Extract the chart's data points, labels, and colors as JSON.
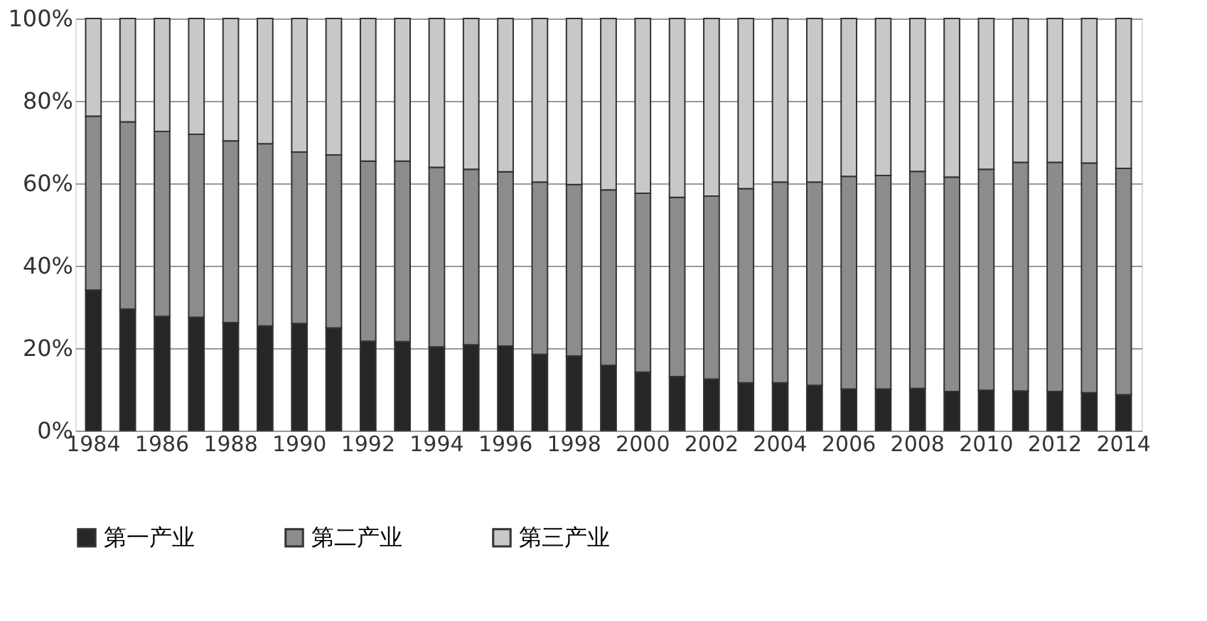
{
  "chart_data": {
    "type": "bar",
    "stacked": true,
    "categories": [
      "1984",
      null,
      "1986",
      null,
      "1988",
      null,
      "1990",
      null,
      "1992",
      null,
      "1994",
      null,
      "1996",
      null,
      "1998",
      null,
      "2000",
      null,
      "2002",
      null,
      "2004",
      null,
      "2006",
      null,
      "2008",
      null,
      "2010",
      null,
      "2012",
      null,
      "2014"
    ],
    "series": [
      {
        "name": "第一产业",
        "color": "#262626",
        "values": [
          34.1,
          29.5,
          27.7,
          27.5,
          26.2,
          25.4,
          26.0,
          24.9,
          21.7,
          21.6,
          20.3,
          20.8,
          20.5,
          18.5,
          18.1,
          15.8,
          14.2,
          13.1,
          12.5,
          11.6,
          11.6,
          11.0,
          10.1,
          10.1,
          10.2,
          9.5,
          9.8,
          9.6,
          9.5,
          9.2,
          8.7
        ]
      },
      {
        "name": "第二产业",
        "color": "#8c8c8c",
        "values": [
          42.2,
          45.4,
          44.9,
          44.4,
          44.1,
          44.2,
          41.6,
          42.0,
          43.7,
          43.8,
          43.6,
          42.6,
          42.3,
          41.8,
          41.6,
          42.6,
          43.4,
          43.5,
          44.4,
          47.1,
          48.7,
          49.3,
          51.6,
          51.8,
          52.7,
          52.0,
          53.6,
          55.5,
          55.6,
          55.7,
          54.9
        ]
      },
      {
        "name": "第三产业",
        "color": "#c8c8c8",
        "values": [
          23.7,
          25.1,
          27.4,
          28.1,
          29.7,
          30.4,
          32.4,
          33.1,
          34.6,
          34.6,
          36.1,
          36.6,
          37.2,
          39.7,
          40.3,
          41.6,
          42.4,
          43.4,
          43.1,
          41.3,
          39.7,
          39.7,
          38.3,
          38.1,
          37.1,
          38.5,
          36.6,
          34.9,
          34.9,
          35.1,
          36.4
        ]
      }
    ],
    "ylim": [
      0,
      100
    ],
    "yticks": [
      {
        "value": 0,
        "label": "0%"
      },
      {
        "value": 20,
        "label": "20%"
      },
      {
        "value": 40,
        "label": "40%"
      },
      {
        "value": 60,
        "label": "60%"
      },
      {
        "value": 80,
        "label": "80%"
      },
      {
        "value": 100,
        "label": "100%"
      }
    ],
    "grid": "y",
    "legend": "bottom"
  }
}
